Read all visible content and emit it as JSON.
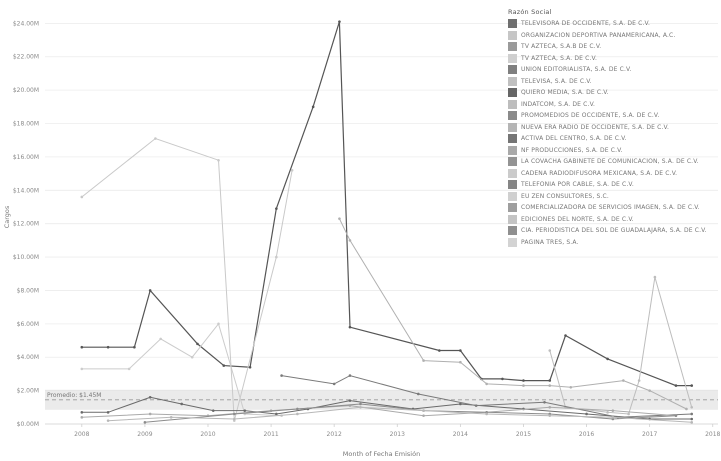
{
  "chart_data": {
    "type": "line",
    "xlabel": "Month of Fecha Emisión",
    "ylabel": "Cargos",
    "x_ticks": [
      "2008",
      "2009",
      "2010",
      "2011",
      "2012",
      "2013",
      "2014",
      "2015",
      "2016",
      "2017",
      "2018"
    ],
    "xlim": [
      "2007-06",
      "2018-02"
    ],
    "y_ticks": [
      "$0.00M",
      "$2.00M",
      "$4.00M",
      "$6.00M",
      "$8.00M",
      "$10.00M",
      "$12.00M",
      "$14.00M",
      "$16.00M",
      "$18.00M",
      "$20.00M",
      "$22.00M",
      "$24.00M"
    ],
    "ylim": [
      0,
      24.8
    ],
    "grid": true,
    "reference_line": {
      "label": "Promedio: $1.45M",
      "value": 1.45,
      "band": [
        0.85,
        2.05
      ]
    },
    "legend": {
      "title": "Razón Social",
      "position": "right",
      "entries": [
        {
          "name": "TELEVISORA DE OCCIDENTE, S.A. DE C.V.",
          "color": "#6f6f6f"
        },
        {
          "name": "ORGANIZACION DEPORTIVA PANAMERICANA, A.C.",
          "color": "#c6c6c6"
        },
        {
          "name": "TV AZTECA, S.A.B DE C.V.",
          "color": "#9a9a9a"
        },
        {
          "name": "TV AZTECA, S.A. DE C.V.",
          "color": "#cfcfcf"
        },
        {
          "name": "UNION EDITORIALISTA, S.A. DE C.V.",
          "color": "#7f7f7f"
        },
        {
          "name": "TELEVISA, S.A. DE C.V.",
          "color": "#c0c0c0"
        },
        {
          "name": "QUIERO MEDIA, S.A. DE C.V.",
          "color": "#666666"
        },
        {
          "name": "INDATCOM, S.A. DE C.V.",
          "color": "#bdbdbd"
        },
        {
          "name": "PROMOMEDIOS DE OCCIDENTE, S.A. DE C.V.",
          "color": "#8a8a8a"
        },
        {
          "name": "NUEVA ERA RADIO DE OCCIDENTE, S.A. DE C.V.",
          "color": "#b5b5b5"
        },
        {
          "name": "ACTIVA DEL CENTRO, S.A. DE C.V.",
          "color": "#757575"
        },
        {
          "name": "NF PRODUCCIONES, S.A. DE C.V.",
          "color": "#a9a9a9"
        },
        {
          "name": "LA COVACHA GABINETE DE COMUNICACION, S.A. DE C.V.",
          "color": "#939393"
        },
        {
          "name": "CADENA RADIODIFUSORA MEXICANA, S.A. DE C.V.",
          "color": "#cbcbcb"
        },
        {
          "name": "TELEFONIA POR CABLE, S.A. DE C.V.",
          "color": "#858585"
        },
        {
          "name": "EU ZEN CONSULTORES, S.C.",
          "color": "#d0d0d0"
        },
        {
          "name": "COMERCIALIZADORA DE SERVICIOS IMAGEN, S.A. DE C.V.",
          "color": "#9e9e9e"
        },
        {
          "name": "EDICIONES DEL NORTE, S.A. DE C.V.",
          "color": "#c4c4c4"
        },
        {
          "name": "CIA. PERIODISTICA DEL SOL DE GUADALAJARA, S.A. DE C.V.",
          "color": "#8f8f8f"
        },
        {
          "name": "PAGINA TRES, S.A.",
          "color": "#d3d3d3"
        }
      ]
    },
    "series": [
      {
        "name": "QUIERO MEDIA, S.A. DE C.V.",
        "color": "#555555",
        "x": [
          "2008-01",
          "2008-06",
          "2008-11",
          "2009-02",
          "2009-11",
          "2010-04",
          "2010-09",
          "2011-02",
          "2011-09",
          "2012-02",
          "2012-04",
          "2013-09",
          "2014-01",
          "2014-05",
          "2014-09",
          "2015-01",
          "2015-06",
          "2015-09",
          "2016-05",
          "2017-06",
          "2017-09"
        ],
        "y": [
          4.6,
          4.6,
          4.6,
          8.0,
          4.8,
          3.5,
          3.4,
          12.9,
          19.0,
          24.1,
          5.8,
          4.4,
          4.4,
          2.7,
          2.7,
          2.6,
          2.6,
          5.3,
          3.9,
          2.3,
          2.3
        ]
      },
      {
        "name": "ORGANIZACION DEPORTIVA PANAMERICANA, A.C.",
        "color": "#c9c9c9",
        "x": [
          "2008-01",
          "2009-03",
          "2010-03",
          "2010-06",
          "2011-02",
          "2011-05"
        ],
        "y": [
          13.6,
          17.1,
          15.8,
          0.2,
          10.0,
          15.2
        ]
      },
      {
        "name": "TV AZTECA, S.A.B DE C.V.",
        "color": "#b0b0b0",
        "x": [
          "2012-02",
          "2012-04",
          "2013-06",
          "2014-01",
          "2014-06",
          "2015-01",
          "2015-06",
          "2015-10",
          "2016-08",
          "2017-01",
          "2017-08"
        ],
        "y": [
          12.3,
          11.0,
          3.8,
          3.7,
          2.4,
          2.3,
          2.3,
          2.2,
          2.6,
          2.0,
          0.9
        ]
      },
      {
        "name": "TV AZTECA, S.A. DE C.V.",
        "color": "#cccccc",
        "x": [
          "2008-01",
          "2008-10",
          "2009-04",
          "2009-10",
          "2010-03",
          "2010-08",
          "2011-03"
        ],
        "y": [
          3.3,
          3.3,
          5.1,
          4.0,
          6.0,
          0.6,
          0.5
        ]
      },
      {
        "name": "TELEVISORA DE OCCIDENTE, S.A. DE C.V.",
        "color": "#6a6a6a",
        "x": [
          "2008-01",
          "2008-06",
          "2009-02",
          "2009-08",
          "2010-02",
          "2010-08",
          "2011-02",
          "2011-08",
          "2012-04",
          "2013-04",
          "2014-01",
          "2015-01",
          "2016-01",
          "2017-01",
          "2017-09"
        ],
        "y": [
          0.7,
          0.7,
          1.6,
          1.2,
          0.8,
          0.8,
          0.6,
          0.9,
          1.4,
          0.9,
          1.2,
          0.9,
          0.6,
          0.3,
          0.3
        ]
      },
      {
        "name": "TELEVISA, S.A. DE C.V.",
        "color": "#bdbdbd",
        "x": [
          "2015-06",
          "2015-09",
          "2016-05",
          "2016-09",
          "2016-11",
          "2017-02",
          "2017-09"
        ],
        "y": [
          4.4,
          1.0,
          0.7,
          0.6,
          2.6,
          8.8,
          1.0
        ]
      },
      {
        "name": "UNION EDITORIALISTA, S.A. DE C.V.",
        "color": "#7a7a7a",
        "x": [
          "2011-03",
          "2012-01",
          "2012-04",
          "2013-05",
          "2014-04",
          "2015-05",
          "2016-07",
          "2017-09"
        ],
        "y": [
          2.9,
          2.4,
          2.9,
          1.8,
          1.1,
          1.3,
          0.4,
          0.6
        ]
      },
      {
        "name": "INDATCOM, S.A. DE C.V.",
        "color": "#aaaaaa",
        "x": [
          "2008-01",
          "2009-02",
          "2010-01",
          "2011-01",
          "2012-04",
          "2013-06",
          "2014-06",
          "2015-06",
          "2016-06",
          "2017-06"
        ],
        "y": [
          0.4,
          0.6,
          0.5,
          0.8,
          1.1,
          0.5,
          0.7,
          1.0,
          0.8,
          0.5
        ]
      },
      {
        "name": "PROMOMEDIOS DE OCCIDENTE, S.A. DE C.V.",
        "color": "#8c8c8c",
        "x": [
          "2009-01",
          "2010-06",
          "2011-06",
          "2012-06",
          "2013-06",
          "2014-06",
          "2015-06",
          "2016-06",
          "2017-06"
        ],
        "y": [
          0.1,
          0.6,
          0.9,
          1.2,
          0.8,
          0.7,
          0.6,
          0.3,
          0.5
        ]
      },
      {
        "name": "NUEVA ERA RADIO DE OCCIDENTE, S.A. DE C.V.",
        "color": "#b8b8b8",
        "x": [
          "2008-06",
          "2009-06",
          "2010-06",
          "2011-06",
          "2012-06",
          "2013-06",
          "2014-06",
          "2015-06",
          "2016-06",
          "2017-09"
        ],
        "y": [
          0.2,
          0.4,
          0.3,
          0.6,
          1.0,
          0.8,
          0.6,
          0.5,
          0.4,
          0.1
        ]
      }
    ]
  }
}
